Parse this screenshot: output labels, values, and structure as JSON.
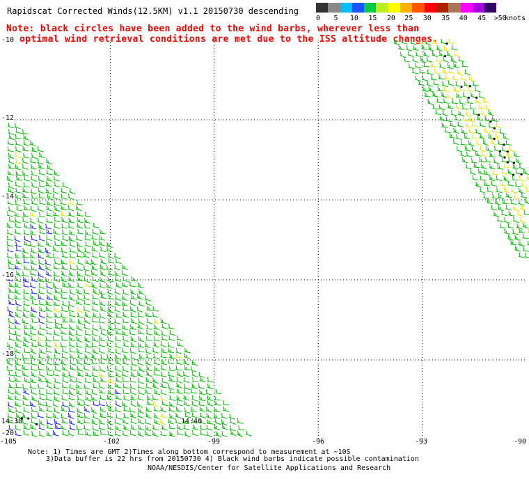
{
  "title": "Rapidscat Corrected Winds(12.5KM) v1.1 20150730 descending",
  "note_line1": "Note: black circles have been added to the wind barbs, wherever less than",
  "note_line2": "optimal wind retrieval conditions are met due to the ISS altitude changes.",
  "legend": {
    "unit": "knots",
    "colors": [
      "#333333",
      "#888888",
      "#00bfff",
      "#1a55ff",
      "#00cc44",
      "#bbee22",
      "#ffff00",
      "#ffb000",
      "#ff5500",
      "#ff0000",
      "#aa2200",
      "#aa7755",
      "#ff00ff",
      "#aa00dd",
      "#330066"
    ],
    "labels": [
      {
        "text": "0",
        "i": 0
      },
      {
        "text": "5",
        "i": 1.3
      },
      {
        "text": "10",
        "i": 2.65
      },
      {
        "text": "15",
        "i": 4
      },
      {
        "text": "20",
        "i": 5.35
      },
      {
        "text": "25",
        "i": 6.65
      },
      {
        "text": "30",
        "i": 8
      },
      {
        "text": "35",
        "i": 9.35
      },
      {
        "text": "40",
        "i": 10.65
      },
      {
        "text": "45",
        "i": 12
      },
      {
        "text": ">50",
        "i": 13.35
      }
    ]
  },
  "lat_labels": [
    "-10",
    "-12",
    "-14",
    "-16",
    "-18",
    "-20"
  ],
  "lon_labels": [
    "-105",
    "-102",
    "-99",
    "-96",
    "-93",
    "-90"
  ],
  "time_labels": [
    "14:30",
    "14:40"
  ],
  "footer_line1": "Note: 1) Times are GMT 2)Times along bottom correspond to measurement at ~10S",
  "footer_line2": "3)Data buffer is 22 hrs from 20150730 4) Black wind barbs indicate possible contamination",
  "footer_line3": "NOAA/NESDIS/Center for Satellite Applications and Research"
}
